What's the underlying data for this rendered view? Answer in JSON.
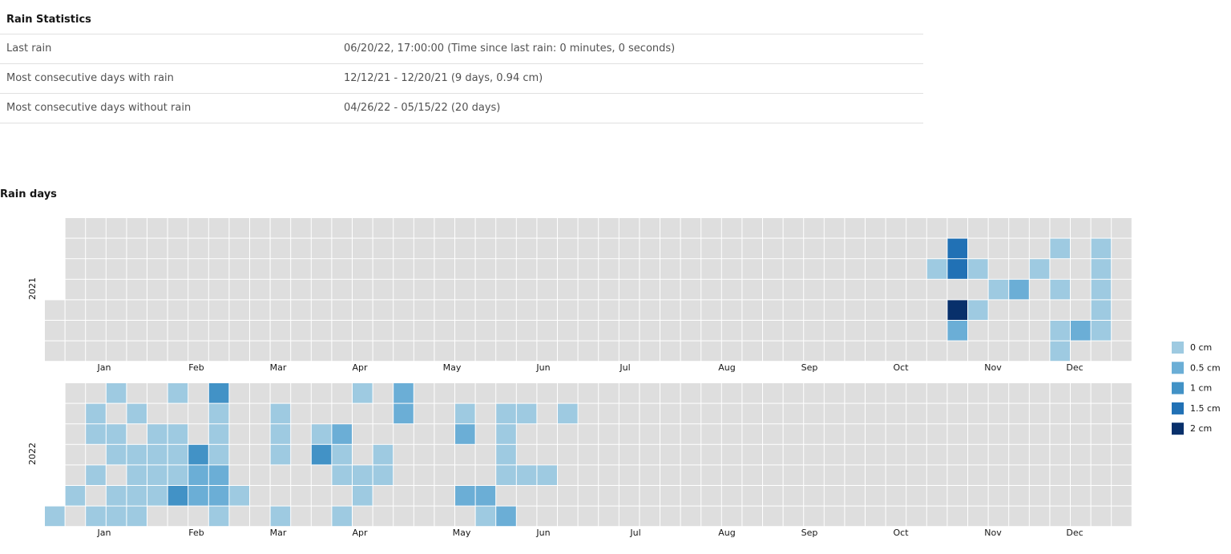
{
  "stats": {
    "title": "Rain Statistics",
    "rows": [
      {
        "label": "Last rain",
        "value": "06/20/22, 17:00:00 (Time since last rain: 0 minutes, 0 seconds)"
      },
      {
        "label": "Most consecutive days with rain",
        "value": "12/12/21 - 12/20/21 (9 days, 0.94 cm)"
      },
      {
        "label": "Most consecutive days without rain",
        "value": "04/26/22 - 05/15/22 (20 days)"
      }
    ]
  },
  "chart_title": "Rain days",
  "chart_data": {
    "type": "heatmap",
    "title": "Rain days",
    "rows_per_year": "day of week",
    "columns": "week of year",
    "years": [
      "2021",
      "2022"
    ],
    "month_labels": [
      "Jan",
      "Feb",
      "Mar",
      "Apr",
      "May",
      "Jun",
      "Jul",
      "Aug",
      "Sep",
      "Oct",
      "Nov",
      "Dec"
    ],
    "legend": [
      {
        "label": "0 cm",
        "color": "#9ecae1"
      },
      {
        "label": "0.5 cm",
        "color": "#6baed6"
      },
      {
        "label": "1 cm",
        "color": "#4292c6"
      },
      {
        "label": "1.5 cm",
        "color": "#2171b5"
      },
      {
        "label": "2 cm",
        "color": "#08306b"
      }
    ],
    "no_rain_color": "#dedede",
    "rain_weeks": {
      "2021": [
        {
          "week": 45,
          "levels": [
            1,
            0,
            0,
            0,
            0,
            0,
            0
          ]
        },
        {
          "week": 46,
          "levels": [
            2,
            0,
            0,
            0,
            0,
            0,
            0
          ]
        },
        {
          "week": 47,
          "levels": [
            1,
            1,
            1,
            0,
            0,
            0,
            0
          ]
        },
        {
          "week": 49,
          "levels": [
            2,
            1,
            1,
            0,
            0,
            0,
            0
          ]
        },
        {
          "week": 50,
          "levels": [
            1,
            1,
            1,
            1,
            1,
            1,
            1
          ]
        },
        {
          "week": 51,
          "levels": [
            1,
            1,
            1,
            1,
            1,
            1,
            0
          ]
        }
      ],
      "2022": [
        {
          "week": 1,
          "levels": [
            0,
            1,
            1,
            1,
            1,
            1,
            1
          ]
        },
        {
          "week": 5,
          "levels": [
            2,
            1,
            1,
            1,
            1,
            1,
            1
          ]
        },
        {
          "week": 10,
          "levels": [
            1,
            1,
            1,
            1,
            1,
            1,
            0
          ]
        }
      ]
    },
    "cells": {
      "2021": [
        [
          43,
          2,
          1
        ],
        [
          44,
          1,
          4
        ],
        [
          44,
          2,
          4
        ],
        [
          44,
          4,
          5
        ],
        [
          44,
          5,
          2
        ],
        [
          45,
          2,
          1
        ],
        [
          45,
          4,
          1
        ],
        [
          46,
          3,
          1
        ],
        [
          47,
          3,
          2
        ],
        [
          48,
          2,
          1
        ],
        [
          49,
          1,
          1
        ],
        [
          49,
          3,
          1
        ],
        [
          49,
          5,
          1
        ],
        [
          49,
          6,
          1
        ],
        [
          50,
          5,
          2
        ],
        [
          51,
          1,
          1
        ],
        [
          51,
          2,
          1
        ],
        [
          51,
          3,
          1
        ],
        [
          51,
          4,
          1
        ],
        [
          51,
          5,
          1
        ]
      ],
      "2022": [
        [
          0,
          2,
          4
        ],
        [
          0,
          3,
          2
        ],
        [
          0,
          4,
          1
        ],
        [
          0,
          6,
          1
        ],
        [
          1,
          5,
          1
        ],
        [
          2,
          1,
          1
        ],
        [
          2,
          2,
          1
        ],
        [
          2,
          4,
          1
        ],
        [
          2,
          6,
          1
        ],
        [
          3,
          0,
          1
        ],
        [
          3,
          2,
          1
        ],
        [
          3,
          3,
          1
        ],
        [
          3,
          5,
          1
        ],
        [
          3,
          6,
          1
        ],
        [
          4,
          1,
          1
        ],
        [
          4,
          3,
          1
        ],
        [
          4,
          4,
          1
        ],
        [
          4,
          5,
          1
        ],
        [
          4,
          6,
          1
        ],
        [
          5,
          2,
          1
        ],
        [
          5,
          3,
          1
        ],
        [
          5,
          4,
          1
        ],
        [
          5,
          5,
          1
        ],
        [
          6,
          0,
          1
        ],
        [
          6,
          2,
          1
        ],
        [
          6,
          3,
          1
        ],
        [
          6,
          4,
          1
        ],
        [
          6,
          5,
          3
        ],
        [
          7,
          3,
          3
        ],
        [
          7,
          4,
          2
        ],
        [
          7,
          5,
          2
        ],
        [
          8,
          0,
          3
        ],
        [
          8,
          1,
          1
        ],
        [
          8,
          2,
          1
        ],
        [
          8,
          3,
          1
        ],
        [
          8,
          4,
          2
        ],
        [
          8,
          5,
          2
        ],
        [
          8,
          6,
          1
        ],
        [
          9,
          5,
          1
        ],
        [
          11,
          1,
          1
        ],
        [
          11,
          2,
          1
        ],
        [
          11,
          3,
          1
        ],
        [
          11,
          6,
          1
        ],
        [
          13,
          2,
          1
        ],
        [
          13,
          3,
          3
        ],
        [
          14,
          2,
          2
        ],
        [
          14,
          3,
          1
        ],
        [
          14,
          4,
          1
        ],
        [
          14,
          6,
          1
        ],
        [
          15,
          0,
          1
        ],
        [
          15,
          4,
          1
        ],
        [
          15,
          5,
          1
        ],
        [
          16,
          3,
          1
        ],
        [
          16,
          4,
          1
        ],
        [
          17,
          0,
          2
        ],
        [
          17,
          1,
          2
        ],
        [
          20,
          1,
          1
        ],
        [
          20,
          2,
          2
        ],
        [
          20,
          5,
          2
        ],
        [
          21,
          5,
          2
        ],
        [
          21,
          6,
          1
        ],
        [
          22,
          1,
          1
        ],
        [
          22,
          2,
          1
        ],
        [
          22,
          3,
          1
        ],
        [
          22,
          4,
          1
        ],
        [
          22,
          6,
          2
        ],
        [
          23,
          1,
          1
        ],
        [
          23,
          4,
          1
        ],
        [
          24,
          4,
          1
        ],
        [
          25,
          1,
          1
        ]
      ]
    }
  }
}
